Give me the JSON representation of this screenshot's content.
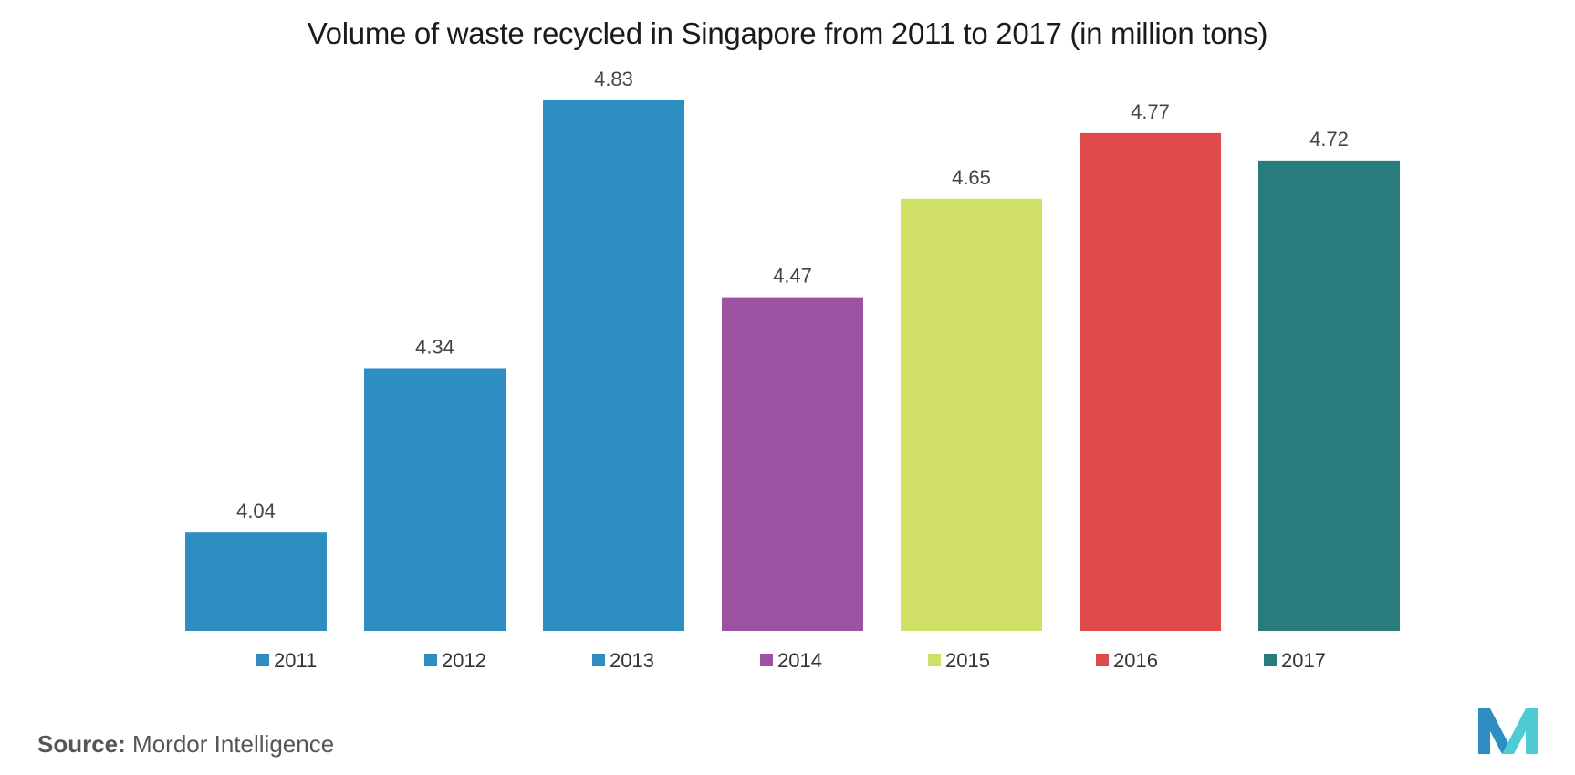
{
  "chart_data": {
    "type": "bar",
    "title": "Volume of waste recycled in Singapore from 2011 to 2017 (in million tons)",
    "categories": [
      "2011",
      "2012",
      "2013",
      "2014",
      "2015",
      "2016",
      "2017"
    ],
    "values": [
      4.04,
      4.34,
      4.83,
      4.47,
      4.65,
      4.77,
      4.72
    ],
    "colors": [
      "#2e8ec1",
      "#2e8ec1",
      "#2e8ec1",
      "#9b52a0",
      "#d1e066",
      "#df4a4a",
      "#287d7c"
    ],
    "xlabel": "",
    "ylabel": "",
    "ylim": [
      3.86,
      4.86
    ],
    "grid": false,
    "legend": "bottom"
  },
  "source": {
    "label": "Source:",
    "text": "Mordor Intelligence"
  },
  "logo": {
    "icon": "mordor-intelligence-logo-icon",
    "colors": [
      "#2e8ec1",
      "#4ecbd3"
    ]
  }
}
